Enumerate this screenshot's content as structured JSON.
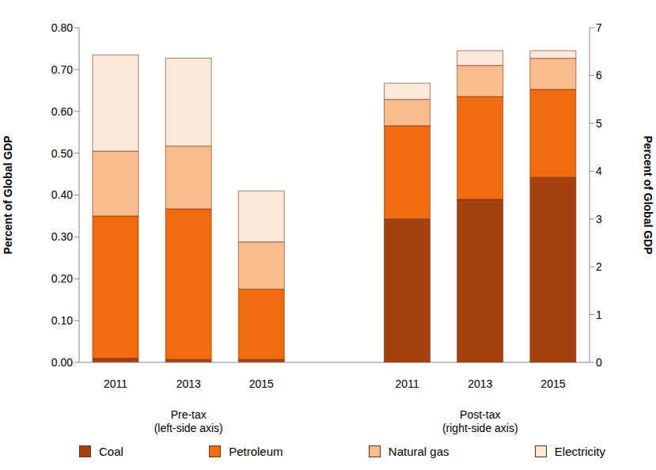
{
  "chart_data": {
    "type": "bar",
    "stacked": true,
    "grid": false,
    "legend": "bottom",
    "categories": [
      "2011",
      "2013",
      "2015",
      null,
      "2011",
      "2013",
      "2015"
    ],
    "group_labels": [
      [
        "Pre-tax",
        "(left-side axis)"
      ],
      [
        "Post-tax",
        "(right-side axis)"
      ]
    ],
    "ylabel": "Percent of Global GDP",
    "y2label": "Percent of Global GDP",
    "ylim": [
      0,
      0.8
    ],
    "yticks": [
      {
        "value": 0,
        "label": "0.00"
      },
      {
        "value": 0.1,
        "label": "0.10"
      },
      {
        "value": 0.2,
        "label": "0.20"
      },
      {
        "value": 0.3,
        "label": "0.30"
      },
      {
        "value": 0.4,
        "label": "0.40"
      },
      {
        "value": 0.5,
        "label": "0.50"
      },
      {
        "value": 0.6,
        "label": "0.60"
      },
      {
        "value": 0.7,
        "label": "0.70"
      },
      {
        "value": 0.8,
        "label": "0.80"
      }
    ],
    "y2lim": [
      0,
      7
    ],
    "y2ticks": [
      0,
      1,
      2,
      3,
      4,
      5,
      6,
      7
    ],
    "series": [
      {
        "name": "Coal",
        "color": "#a5400f",
        "axis": "y",
        "values": [
          0.01,
          0.007,
          0.007,
          null,
          null,
          null,
          null
        ]
      },
      {
        "name": "Petroleum",
        "color": "#f26b0f",
        "axis": "y",
        "values": [
          0.34,
          0.36,
          0.168,
          null,
          null,
          null,
          null
        ]
      },
      {
        "name": "Natural gas",
        "color": "#f9bc8f",
        "axis": "y",
        "values": [
          0.155,
          0.15,
          0.113,
          null,
          null,
          null,
          null
        ]
      },
      {
        "name": "Electricity",
        "color": "#fde9da",
        "axis": "y",
        "values": [
          0.23,
          0.21,
          0.122,
          null,
          null,
          null,
          null
        ]
      },
      {
        "name": "Coal",
        "color": "#a5400f",
        "axis": "y2",
        "values": [
          null,
          null,
          null,
          null,
          3.0,
          3.41,
          3.87
        ]
      },
      {
        "name": "Petroleum",
        "color": "#f26b0f",
        "axis": "y2",
        "values": [
          null,
          null,
          null,
          null,
          1.95,
          2.15,
          1.84
        ]
      },
      {
        "name": "Natural gas",
        "color": "#f9bc8f",
        "axis": "y2",
        "values": [
          null,
          null,
          null,
          null,
          0.55,
          0.65,
          0.65
        ]
      },
      {
        "name": "Electricity",
        "color": "#fde9da",
        "axis": "y2",
        "values": [
          null,
          null,
          null,
          null,
          0.34,
          0.31,
          0.16
        ]
      }
    ]
  }
}
